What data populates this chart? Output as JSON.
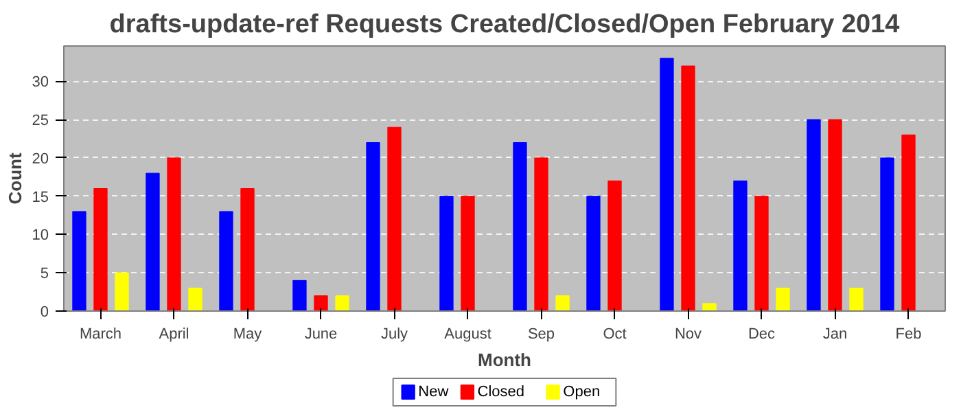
{
  "chart_data": {
    "type": "bar",
    "title": "drafts-update-ref Requests Created/Closed/Open February 2014",
    "xlabel": "Month",
    "ylabel": "Count",
    "categories": [
      "March",
      "April",
      "May",
      "June",
      "July",
      "August",
      "Sep",
      "Oct",
      "Nov",
      "Dec",
      "Jan",
      "Feb"
    ],
    "series": [
      {
        "name": "New",
        "color": "#0000ff",
        "values": [
          13,
          18,
          13,
          4,
          22,
          15,
          22,
          15,
          33,
          17,
          25,
          20
        ]
      },
      {
        "name": "Closed",
        "color": "#ff0000",
        "values": [
          16,
          20,
          16,
          2,
          24,
          15,
          20,
          17,
          32,
          15,
          25,
          23
        ]
      },
      {
        "name": "Open",
        "color": "#ffff00",
        "values": [
          5,
          3,
          0,
          2,
          0,
          0,
          2,
          0,
          1,
          3,
          3,
          0
        ]
      }
    ],
    "ylim": [
      0,
      34.6
    ],
    "yticks": [
      0,
      5,
      10,
      15,
      20,
      25,
      30
    ],
    "grid": "y",
    "legend": "bottom"
  }
}
